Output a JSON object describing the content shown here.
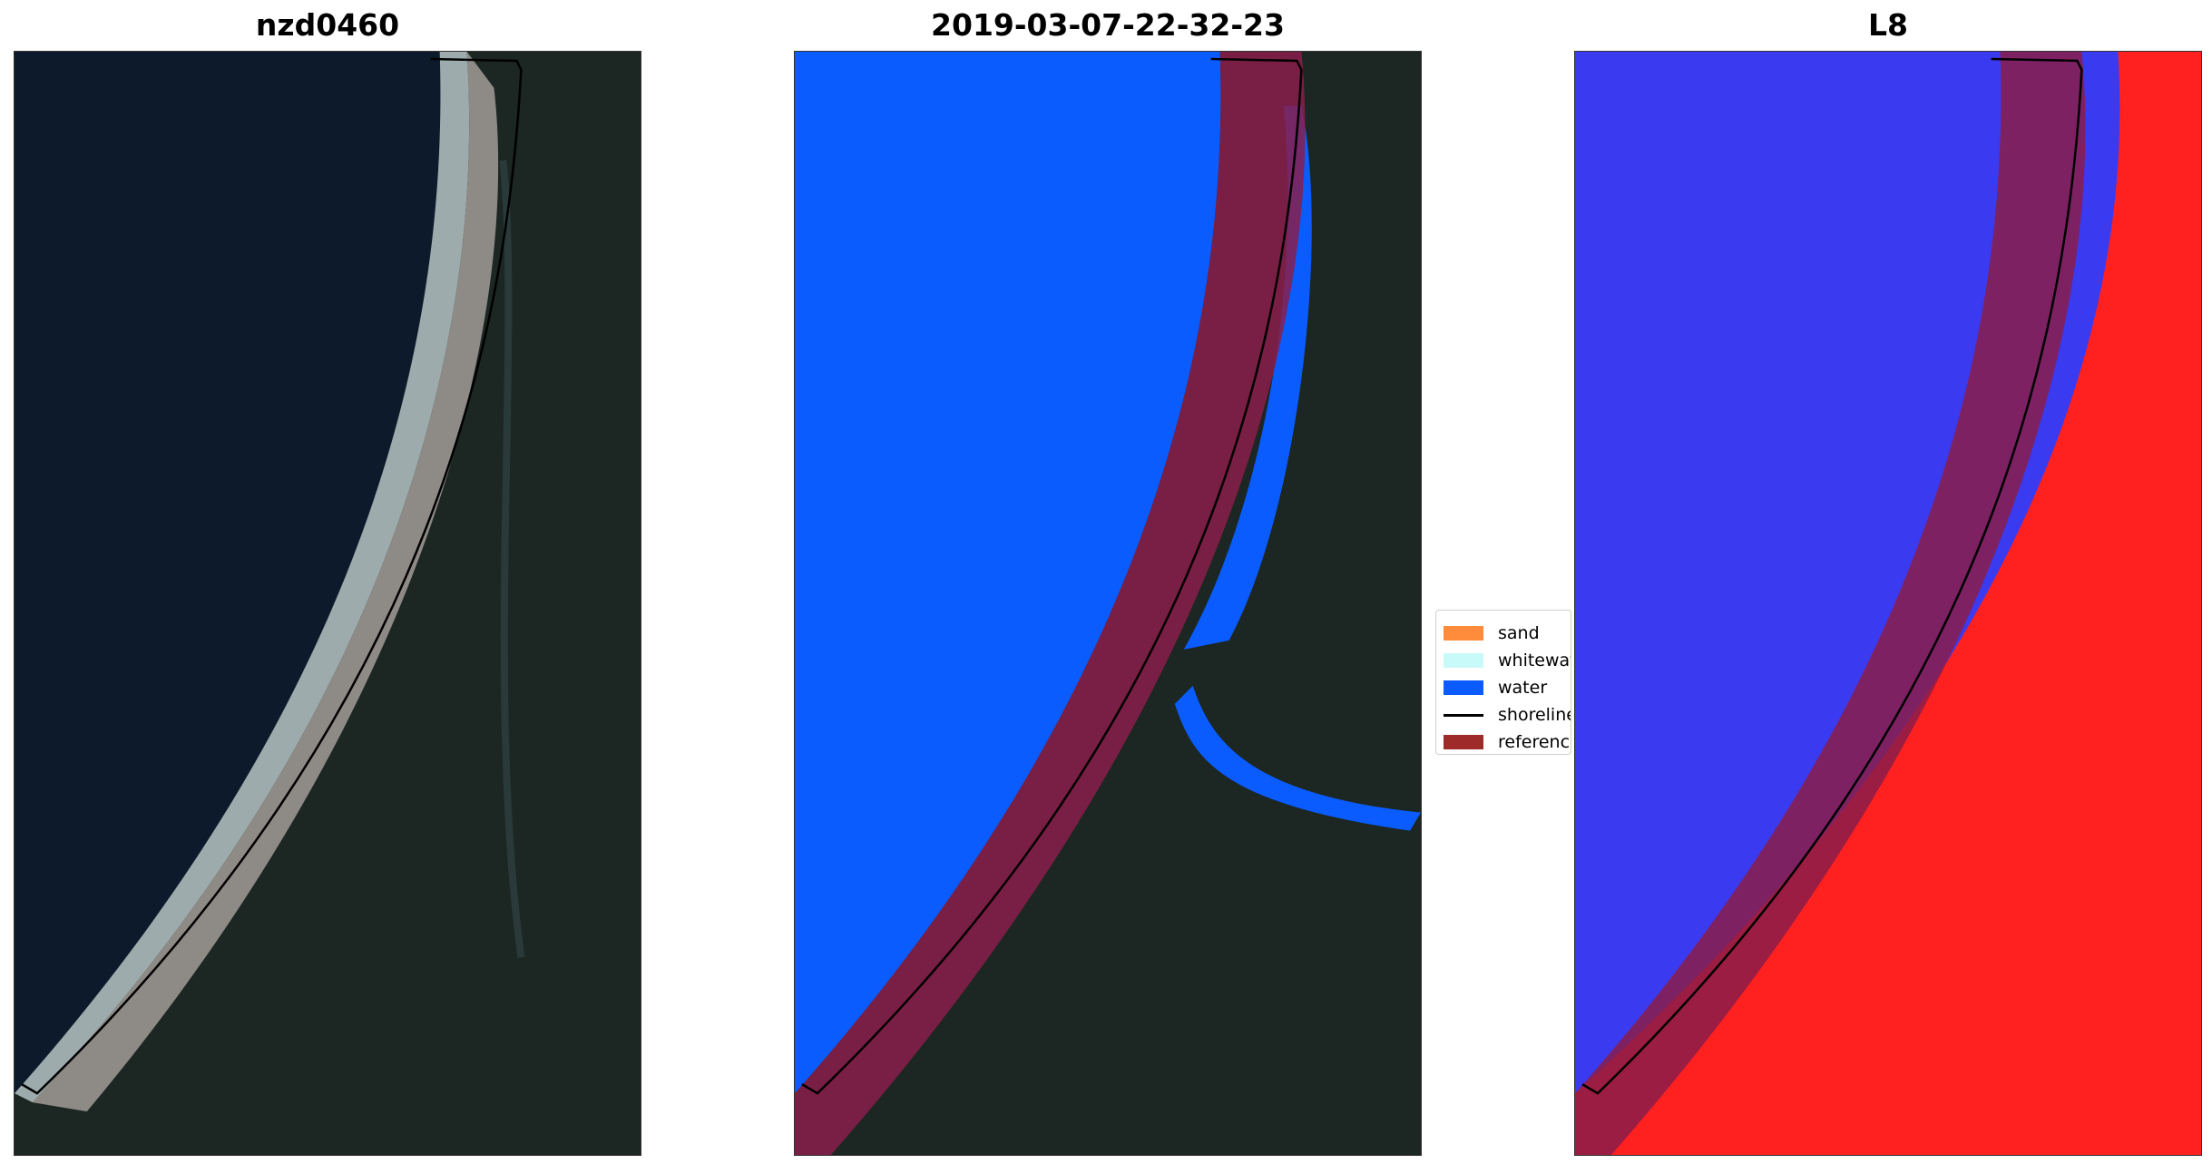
{
  "panels": [
    {
      "title": "nzd0460"
    },
    {
      "title": "2019-03-07-22-32-23"
    },
    {
      "title": "L8"
    }
  ],
  "legend": {
    "items": [
      {
        "label": "sand",
        "color": "#ff8c3a",
        "kind": "patch"
      },
      {
        "label": "whitewater",
        "color": "#c8fafa",
        "kind": "patch"
      },
      {
        "label": "water",
        "color": "#0a5cff",
        "kind": "patch"
      },
      {
        "label": "shoreline",
        "color": "#000000",
        "kind": "line"
      },
      {
        "label": "reference shoreline buffer",
        "color": "#9e2a2a",
        "kind": "patch"
      }
    ]
  },
  "colors": {
    "ocean_rgb": "#0d1a2c",
    "land_rgb": "#1c2622",
    "sand_rgb": "#8e8a86",
    "surf_rgb": "#c8d8dc",
    "water_class": "#0a5cff",
    "buffer": "#8a1d4a",
    "index_low": "#3a3af0",
    "index_high": "#ff2020"
  }
}
